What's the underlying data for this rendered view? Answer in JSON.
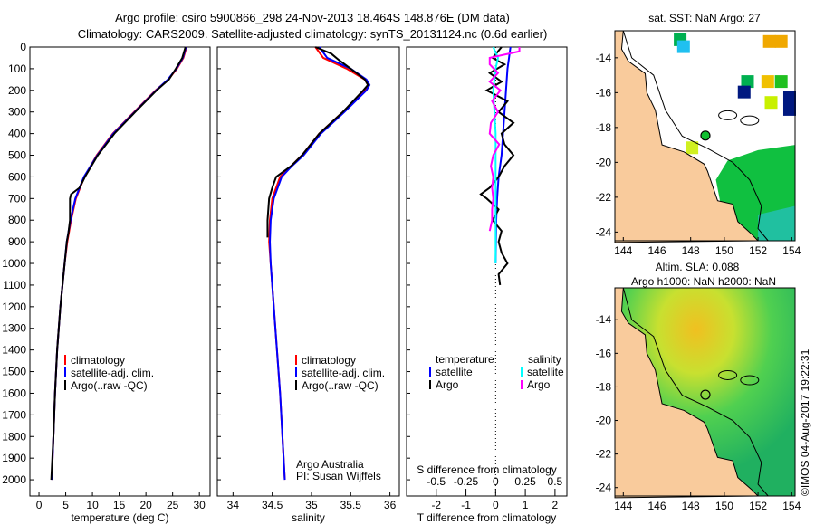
{
  "title": {
    "line1": "Argo profile: csiro 5900866_298 24-Nov-2013 18.464S 148.876E (DM data)",
    "line2": "Climatology: CARS2009. Satellite-adjusted climatology: synTS_20131124.nc (0.6d earlier)"
  },
  "credit": "©IMOS 04-Aug-2017 19:22:31",
  "chart_data": [
    {
      "type": "line",
      "id": "temp",
      "xlabel": "temperature (deg C)",
      "ylabel": "",
      "xlim": [
        -1.7,
        32
      ],
      "ylim": [
        0,
        2075
      ],
      "yreverse": true,
      "xticks": [
        0,
        5,
        10,
        15,
        20,
        25,
        30
      ],
      "yticks": [
        0,
        100,
        200,
        300,
        400,
        500,
        600,
        700,
        800,
        900,
        1000,
        1100,
        1200,
        1300,
        1400,
        1500,
        1600,
        1700,
        1800,
        1900,
        2000
      ],
      "legend": [
        "climatology",
        "satellite-adj. clim.",
        "Argo(..raw -QC)"
      ],
      "series": [
        {
          "name": "climatology",
          "color": "#ff0000",
          "depth": [
            0,
            50,
            100,
            150,
            200,
            300,
            400,
            500,
            600,
            700,
            800,
            900,
            1000,
            1200,
            1400,
            1600,
            1800,
            2000
          ],
          "values": [
            27.6,
            27,
            25.8,
            24.2,
            21.8,
            17.8,
            13.8,
            10.8,
            8.5,
            6.9,
            6,
            5.3,
            4.8,
            4,
            3.4,
            3,
            2.7,
            2.4
          ]
        },
        {
          "name": "satellite-adj. clim.",
          "color": "#0000ff",
          "depth": [
            0,
            50,
            100,
            150,
            200,
            300,
            400,
            500,
            600,
            700,
            800,
            900,
            1000,
            1200,
            1400,
            1600,
            1800,
            2000
          ],
          "values": [
            27.5,
            26.9,
            25.7,
            24.1,
            21.9,
            17.9,
            13.9,
            10.9,
            8.4,
            6.8,
            5.9,
            5.2,
            4.8,
            4,
            3.4,
            3,
            2.7,
            2.4
          ]
        },
        {
          "name": "Argo(..raw -QC)",
          "color": "#000000",
          "depth": [
            0,
            50,
            100,
            150,
            200,
            300,
            400,
            500,
            600,
            650,
            680,
            700,
            800,
            860,
            900,
            1000,
            1200,
            1400,
            1600,
            1800,
            2000
          ],
          "values": [
            27.4,
            26.8,
            25.6,
            24.3,
            22,
            18,
            14.1,
            11,
            8.6,
            7.6,
            6,
            5.8,
            5.8,
            5.5,
            5.2,
            4.8,
            4,
            3.4,
            3,
            2.7,
            2.3
          ]
        }
      ]
    },
    {
      "type": "line",
      "id": "sal",
      "xlabel": "salinity",
      "xlim": [
        33.8,
        36.12
      ],
      "ylim": [
        0,
        2075
      ],
      "yreverse": true,
      "xticks": [
        34,
        34.5,
        35,
        35.5,
        36
      ],
      "legend": [
        "climatology",
        "satellite-adj. clim.",
        "Argo(..raw -QC)"
      ],
      "annotation": [
        "Argo Australia",
        "PI: Susan Wijffels"
      ],
      "series": [
        {
          "name": "climatology",
          "color": "#ff0000",
          "depth": [
            0,
            50,
            100,
            150,
            175,
            200,
            300,
            400,
            500,
            550,
            600,
            700,
            800,
            900,
            1000,
            1200,
            1400,
            1600,
            1800,
            2000
          ],
          "values": [
            35.05,
            35.15,
            35.45,
            35.68,
            35.72,
            35.68,
            35.4,
            35.1,
            34.88,
            34.74,
            34.6,
            34.5,
            34.47,
            34.46,
            34.48,
            34.52,
            34.56,
            34.6,
            34.63,
            34.66
          ]
        },
        {
          "name": "satellite-adj. clim.",
          "color": "#0000ff",
          "depth": [
            0,
            50,
            100,
            150,
            175,
            200,
            300,
            400,
            500,
            550,
            600,
            700,
            800,
            900,
            1000,
            1200,
            1400,
            1600,
            1800,
            2000
          ],
          "values": [
            35.1,
            35.2,
            35.5,
            35.7,
            35.74,
            35.7,
            35.42,
            35.12,
            34.9,
            34.75,
            34.62,
            34.52,
            34.48,
            34.47,
            34.48,
            34.52,
            34.56,
            34.6,
            34.63,
            34.66
          ]
        },
        {
          "name": "Argo(..raw -QC)",
          "color": "#000000",
          "depth": [
            0,
            30,
            60,
            100,
            150,
            175,
            200,
            300,
            400,
            500,
            550,
            600,
            650,
            700,
            800,
            880
          ],
          "values": [
            35.05,
            35.25,
            35.35,
            35.5,
            35.68,
            35.72,
            35.66,
            35.4,
            35.1,
            34.88,
            34.74,
            34.55,
            34.5,
            34.46,
            34.44,
            34.44
          ]
        }
      ]
    },
    {
      "type": "line",
      "id": "diff",
      "xlabel": "T difference from climatology",
      "x2label": "S difference from climatology",
      "xlim": [
        -3,
        2.4
      ],
      "ylim": [
        0,
        2075
      ],
      "yreverse": true,
      "xticks": [
        -2,
        -1,
        0,
        1,
        2
      ],
      "x2ticks": [
        -0.5,
        -0.25,
        0,
        0.25,
        0.5
      ],
      "legend_titles": [
        "temperature",
        "salinity"
      ],
      "legend": [
        "satellite",
        "Argo",
        "satellite",
        "Argo"
      ],
      "series": [
        {
          "name": "T satellite",
          "color": "#0000ff",
          "depth": [
            0,
            50,
            100,
            200,
            300,
            400,
            500,
            600,
            700,
            800,
            900,
            1000
          ],
          "values": [
            0.5,
            0.45,
            0.4,
            0.35,
            0.3,
            0.25,
            0.2,
            0.1,
            0.05,
            0.02,
            0.01,
            0
          ]
        },
        {
          "name": "T Argo",
          "color": "#000000",
          "depth": [
            0,
            50,
            80,
            120,
            160,
            200,
            250,
            300,
            350,
            400,
            450,
            500,
            550,
            600,
            650,
            680,
            700,
            750,
            800,
            850,
            900,
            950,
            1000,
            1050,
            1100
          ],
          "values": [
            0.2,
            -0.1,
            0.3,
            -0.2,
            0.2,
            -0.3,
            0.4,
            0.1,
            0.6,
            0.2,
            0.3,
            0.6,
            0.3,
            0.1,
            -0.2,
            -0.5,
            -0.3,
            0.1,
            -0.1,
            0.2,
            0.1,
            0.2,
            0.4,
            0.1,
            0.15
          ]
        },
        {
          "name": "S satellite",
          "color": "#00ffff",
          "depth": [
            0,
            50,
            100,
            200,
            300,
            400,
            500,
            600,
            700,
            800,
            900,
            1000
          ],
          "values": [
            -0.02,
            0.02,
            0.0,
            -0.02,
            -0.01,
            0.0,
            0.0,
            0.0,
            0.0,
            0.0,
            0.0,
            0.0
          ]
        },
        {
          "name": "S Argo",
          "color": "#ff00ff",
          "depth": [
            0,
            20,
            50,
            80,
            120,
            160,
            200,
            250,
            300,
            350,
            400,
            450,
            500,
            550,
            600,
            650,
            700,
            750,
            800,
            850
          ],
          "values": [
            0.2,
            0.2,
            -0.05,
            -0.05,
            0.02,
            -0.05,
            0.04,
            -0.03,
            0.02,
            -0.04,
            -0.05,
            0.03,
            -0.02,
            -0.04,
            -0.02,
            -0.03,
            -0.02,
            -0.03,
            -0.03,
            -0.05
          ]
        }
      ]
    }
  ],
  "maps": [
    {
      "title": "sat. SST: NaN Argo: 27",
      "xticks": [
        144,
        146,
        148,
        150,
        152,
        154
      ],
      "yticks": [
        -14,
        -16,
        -18,
        -20,
        -22,
        -24
      ]
    },
    {
      "title1": "Altim. SLA: 0.088",
      "title2": "Argo h1000: NaN h2000: NaN",
      "xticks": [
        144,
        146,
        148,
        150,
        152,
        154
      ],
      "yticks": [
        -14,
        -16,
        -18,
        -20,
        -22,
        -24
      ]
    }
  ],
  "argo_position": {
    "lon": 148.876,
    "lat": -18.464
  }
}
